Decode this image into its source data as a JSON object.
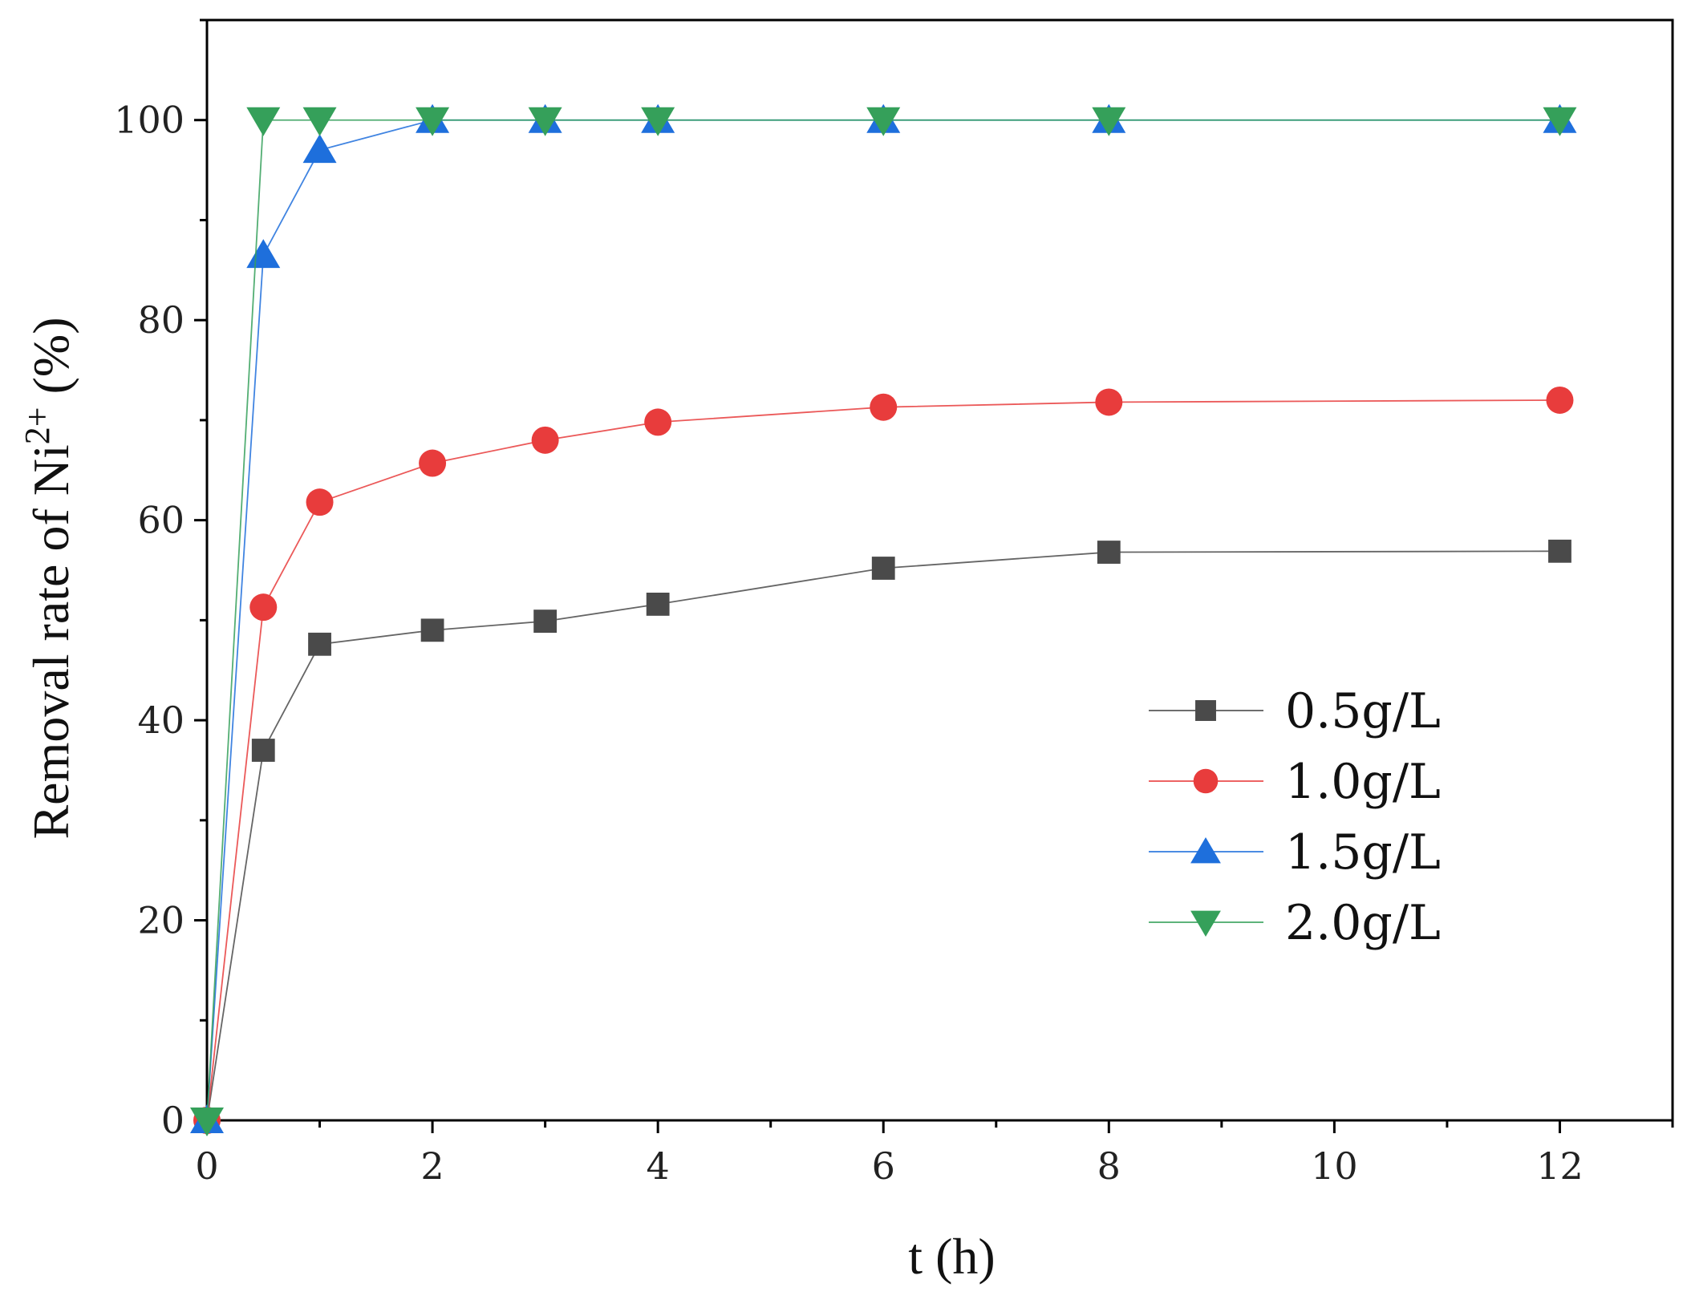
{
  "chart_data": {
    "type": "line",
    "title": "",
    "xlabel": "t (h)",
    "ylabel": {
      "prefix": "Removal rate of Ni",
      "superscript": "2+",
      "suffix": " (%)"
    },
    "xlim": [
      0,
      13
    ],
    "ylim": [
      0,
      110
    ],
    "xticks": [
      0,
      2,
      4,
      6,
      8,
      10,
      12
    ],
    "yticks": [
      0,
      20,
      40,
      60,
      80,
      100
    ],
    "grid": false,
    "legend_position": "center-right",
    "x": [
      0,
      0.5,
      1,
      2,
      3,
      4,
      6,
      8,
      12
    ],
    "series": [
      {
        "name": "0.5g/L",
        "marker": "square",
        "color": "#4a4a4a",
        "values": [
          0,
          37,
          47.6,
          49,
          49.9,
          51.6,
          55.2,
          56.8,
          56.9
        ]
      },
      {
        "name": "1.0g/L",
        "marker": "circle",
        "color": "#e83c3c",
        "values": [
          0,
          51.3,
          61.8,
          65.7,
          68,
          69.8,
          71.3,
          71.8,
          72
        ]
      },
      {
        "name": "1.5g/L",
        "marker": "triangle-up",
        "color": "#1e6fdc",
        "values": [
          0,
          86.5,
          97,
          100,
          100,
          100,
          100,
          100,
          100
        ]
      },
      {
        "name": "2.0g/L",
        "marker": "triangle-down",
        "color": "#35a05a",
        "values": [
          0,
          100,
          100,
          100,
          100,
          100,
          100,
          100,
          100
        ]
      }
    ]
  }
}
